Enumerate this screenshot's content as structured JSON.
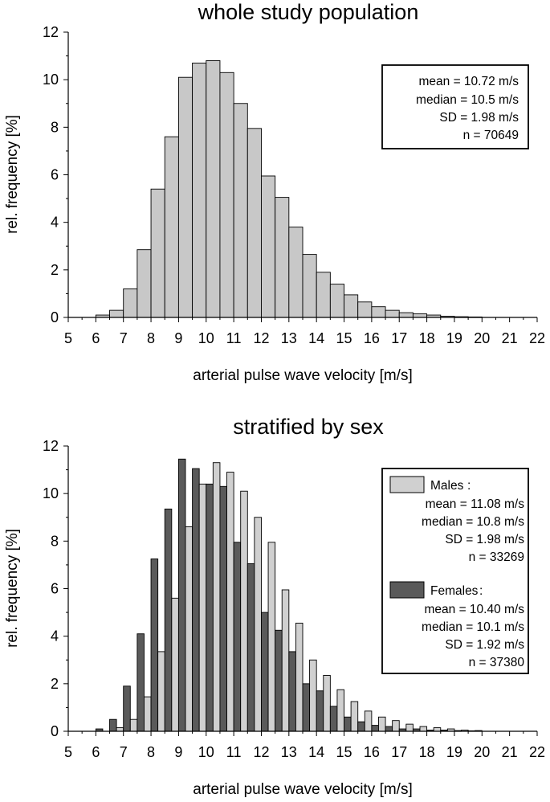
{
  "chart_data": [
    {
      "type": "bar",
      "title": "whole study population",
      "xlabel": "arterial pulse wave velocity  [m/s]",
      "ylabel": "rel. frequency  [%]",
      "xlim": [
        5,
        22
      ],
      "ylim": [
        0,
        12
      ],
      "xticks": [
        "5",
        "6",
        "7",
        "8",
        "9",
        "10",
        "11",
        "12",
        "13",
        "14",
        "15",
        "16",
        "17",
        "18",
        "19",
        "20",
        "21",
        "22"
      ],
      "yticks": [
        "0",
        "2",
        "4",
        "6",
        "8",
        "10",
        "12"
      ],
      "bin_width": 0.5,
      "bins": [
        6.0,
        6.5,
        7.0,
        7.5,
        8.0,
        8.5,
        9.0,
        9.5,
        10.0,
        10.5,
        11.0,
        11.5,
        12.0,
        12.5,
        13.0,
        13.5,
        14.0,
        14.5,
        15.0,
        15.5,
        16.0,
        16.5,
        17.0,
        17.5,
        18.0,
        18.5,
        19.0,
        19.5
      ],
      "values": [
        0.1,
        0.3,
        1.2,
        2.85,
        5.4,
        7.6,
        10.1,
        10.7,
        10.8,
        10.3,
        9.0,
        7.95,
        5.95,
        5.05,
        3.8,
        2.65,
        1.9,
        1.4,
        0.95,
        0.65,
        0.45,
        0.3,
        0.2,
        0.15,
        0.1,
        0.05,
        0.03,
        0.02
      ],
      "color": "#c8c8c8",
      "stats": [
        "mean = 10.72 m/s",
        "median = 10.5 m/s",
        "SD = 1.98 m/s",
        "n = 70649"
      ]
    },
    {
      "type": "bar",
      "title": "stratified by sex",
      "xlabel": "arterial pulse wave velocity  [m/s]",
      "ylabel": "rel. frequency  [%]",
      "xlim": [
        5,
        22
      ],
      "ylim": [
        0,
        12
      ],
      "xticks": [
        "5",
        "6",
        "7",
        "8",
        "9",
        "10",
        "11",
        "12",
        "13",
        "14",
        "15",
        "16",
        "17",
        "18",
        "19",
        "20",
        "21",
        "22"
      ],
      "yticks": [
        "0",
        "2",
        "4",
        "6",
        "8",
        "10",
        "12"
      ],
      "bin_width": 0.5,
      "bins": [
        6.0,
        6.5,
        7.0,
        7.5,
        8.0,
        8.5,
        9.0,
        9.5,
        10.0,
        10.5,
        11.0,
        11.5,
        12.0,
        12.5,
        13.0,
        13.5,
        14.0,
        14.5,
        15.0,
        15.5,
        16.0,
        16.5,
        17.0,
        17.5,
        18.0,
        18.5,
        19.0,
        19.5
      ],
      "series": [
        {
          "name": "Males",
          "color": "#d0d0d0",
          "values": [
            0.0,
            0.15,
            0.5,
            1.45,
            3.35,
            5.6,
            8.6,
            10.4,
            11.3,
            10.9,
            10.1,
            9.0,
            7.95,
            5.95,
            4.55,
            3.0,
            2.35,
            1.75,
            1.25,
            0.85,
            0.6,
            0.45,
            0.3,
            0.2,
            0.15,
            0.1,
            0.05,
            0.03
          ],
          "stats": [
            "mean = 11.08 m/s",
            "median = 10.8 m/s",
            "SD = 1.98 m/s",
            "n = 33269"
          ]
        },
        {
          "name": "Females",
          "color": "#5a5a5a",
          "values": [
            0.1,
            0.5,
            1.9,
            4.1,
            7.25,
            9.35,
            11.45,
            11.05,
            10.4,
            10.3,
            7.95,
            7.05,
            5.0,
            4.25,
            3.35,
            2.0,
            1.7,
            1.05,
            0.6,
            0.4,
            0.25,
            0.2,
            0.1,
            0.1,
            0.05,
            0.05,
            0.03,
            0.02
          ],
          "stats": [
            "mean = 10.40 m/s",
            "median = 10.1 m/s",
            "SD = 1.92 m/s",
            "n = 37380"
          ]
        }
      ]
    }
  ]
}
